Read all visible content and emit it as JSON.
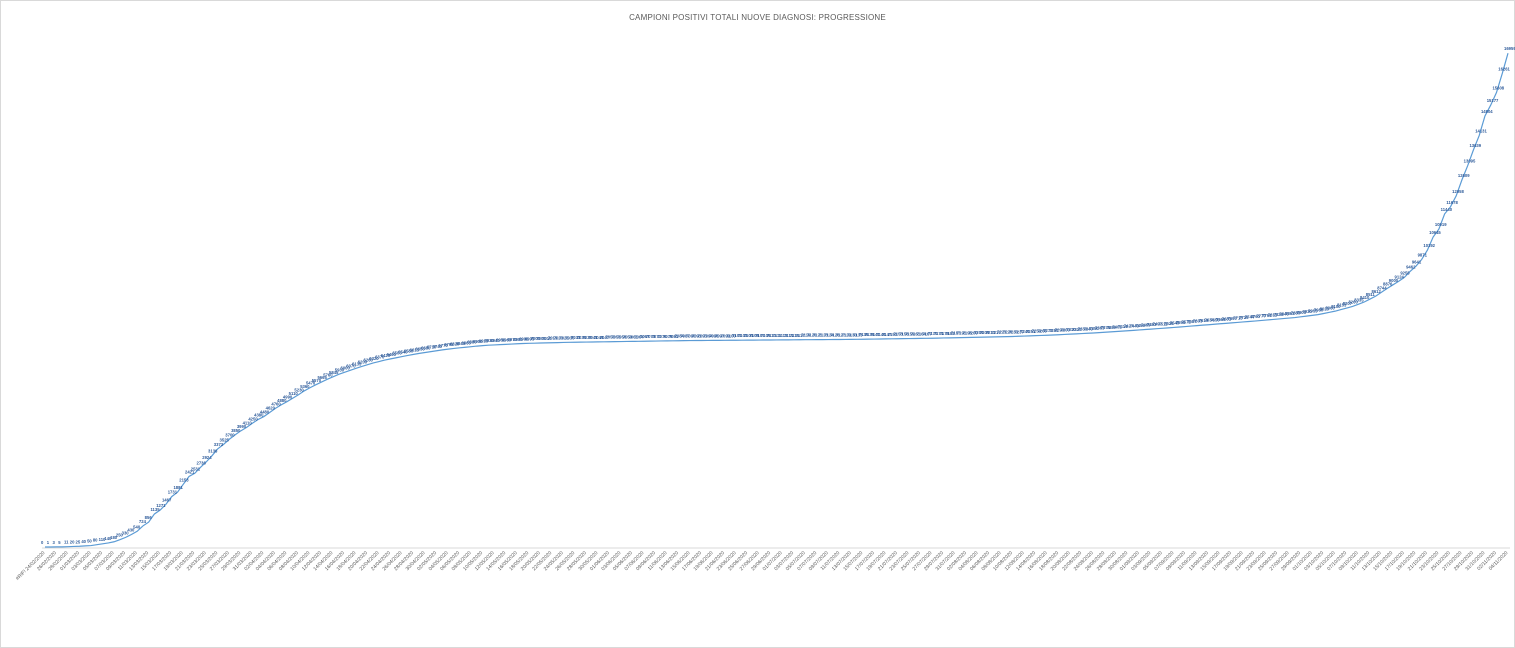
{
  "chart_data": {
    "type": "line",
    "title": "CAMPIONI POSITIVI TOTALI NUOVE DIAGNOSI: PROGRESSIONE",
    "xlabel": "",
    "ylabel": "",
    "ylim": [
      0,
      17000
    ],
    "grid": false,
    "legend": "none",
    "line_color": "#5b9bd5",
    "label_color": "#2e5b9a",
    "first_tick_label": "#RIF!",
    "start_date": "2020-02-24",
    "end_date": "2020-11-04",
    "tick_every_days": 2,
    "points": [
      [
        "2020-02-24",
        0
      ],
      [
        "2020-02-25",
        1
      ],
      [
        "2020-02-26",
        3
      ],
      [
        "2020-02-27",
        5
      ],
      [
        "2020-02-28",
        11
      ],
      [
        "2020-02-29",
        20
      ],
      [
        "2020-03-01",
        25
      ],
      [
        "2020-03-02",
        40
      ],
      [
        "2020-03-03",
        50
      ],
      [
        "2020-03-04",
        80
      ],
      [
        "2020-03-05",
        110
      ],
      [
        "2020-03-06",
        140
      ],
      [
        "2020-03-07",
        180
      ],
      [
        "2020-03-08",
        250
      ],
      [
        "2020-03-09",
        330
      ],
      [
        "2020-03-10",
        430
      ],
      [
        "2020-03-11",
        540
      ],
      [
        "2020-03-12",
        724
      ],
      [
        "2020-03-13",
        856
      ],
      [
        "2020-03-14",
        1135
      ],
      [
        "2020-03-15",
        1271
      ],
      [
        "2020-03-16",
        1467
      ],
      [
        "2020-03-17",
        1731
      ],
      [
        "2020-03-18",
        1881
      ],
      [
        "2020-03-19",
        2153
      ],
      [
        "2020-03-20",
        2421
      ],
      [
        "2020-03-21",
        2531
      ],
      [
        "2020-03-22",
        2736
      ],
      [
        "2020-03-23",
        2924
      ],
      [
        "2020-03-24",
        3136
      ],
      [
        "2020-03-25",
        3373
      ],
      [
        "2020-03-26",
        3525
      ],
      [
        "2020-03-27",
        3700
      ],
      [
        "2020-03-28",
        3850
      ],
      [
        "2020-03-29",
        3990
      ],
      [
        "2020-03-30",
        4110
      ],
      [
        "2020-03-31",
        4250
      ],
      [
        "2020-04-01",
        4380
      ],
      [
        "2020-04-02",
        4480
      ],
      [
        "2020-04-03",
        4620
      ],
      [
        "2020-04-04",
        4760
      ],
      [
        "2020-04-05",
        4880
      ],
      [
        "2020-04-06",
        4990
      ],
      [
        "2020-04-07",
        5110
      ],
      [
        "2020-04-08",
        5230
      ],
      [
        "2020-04-09",
        5360
      ],
      [
        "2020-04-10",
        5470
      ],
      [
        "2020-04-11",
        5570
      ],
      [
        "2020-04-13",
        5760
      ],
      [
        "2020-04-15",
        5930
      ],
      [
        "2020-04-17",
        6070
      ],
      [
        "2020-04-19",
        6200
      ],
      [
        "2020-04-21",
        6320
      ],
      [
        "2020-04-23",
        6420
      ],
      [
        "2020-04-25",
        6500
      ],
      [
        "2020-04-27",
        6580
      ],
      [
        "2020-04-29",
        6650
      ],
      [
        "2020-05-01",
        6710
      ],
      [
        "2020-05-03",
        6770
      ],
      [
        "2020-05-05",
        6820
      ],
      [
        "2020-05-07",
        6860
      ],
      [
        "2020-05-09",
        6900
      ],
      [
        "2020-05-11",
        6930
      ],
      [
        "2020-05-14",
        6960
      ],
      [
        "2020-05-17",
        6990
      ],
      [
        "2020-05-21",
        7010
      ],
      [
        "2020-05-25",
        7030
      ],
      [
        "2020-06-01",
        7050
      ],
      [
        "2020-06-08",
        7070
      ],
      [
        "2020-06-15",
        7090
      ],
      [
        "2020-06-22",
        7100
      ],
      [
        "2020-06-29",
        7110
      ],
      [
        "2020-07-06",
        7120
      ],
      [
        "2020-07-13",
        7130
      ],
      [
        "2020-07-20",
        7150
      ],
      [
        "2020-07-27",
        7170
      ],
      [
        "2020-08-03",
        7200
      ],
      [
        "2020-08-10",
        7230
      ],
      [
        "2020-08-17",
        7280
      ],
      [
        "2020-08-24",
        7350
      ],
      [
        "2020-08-31",
        7440
      ],
      [
        "2020-09-07",
        7540
      ],
      [
        "2020-09-14",
        7650
      ],
      [
        "2020-09-21",
        7760
      ],
      [
        "2020-09-28",
        7880
      ],
      [
        "2020-10-02",
        7980
      ],
      [
        "2020-10-05",
        8100
      ],
      [
        "2020-10-08",
        8260
      ],
      [
        "2020-10-10",
        8410
      ],
      [
        "2020-10-12",
        8612
      ],
      [
        "2020-10-14",
        8876
      ],
      [
        "2020-10-16",
        9124
      ],
      [
        "2020-10-17",
        9258
      ],
      [
        "2020-10-18",
        9462
      ],
      [
        "2020-10-19",
        9641
      ],
      [
        "2020-10-20",
        9871
      ],
      [
        "2020-10-21",
        10192
      ],
      [
        "2020-10-22",
        10645
      ],
      [
        "2020-10-23",
        10919
      ],
      [
        "2020-10-24",
        11440
      ],
      [
        "2020-10-25",
        11678
      ],
      [
        "2020-10-26",
        12058
      ],
      [
        "2020-10-27",
        12609
      ],
      [
        "2020-10-28",
        13095
      ],
      [
        "2020-10-29",
        13639
      ],
      [
        "2020-10-30",
        14131
      ],
      [
        "2020-10-31",
        14804
      ],
      [
        "2020-11-01",
        15177
      ],
      [
        "2020-11-02",
        15608
      ],
      [
        "2020-11-03",
        16261
      ],
      [
        "2020-11-04",
        16959
      ]
    ]
  }
}
